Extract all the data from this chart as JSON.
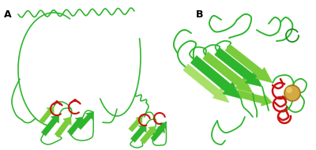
{
  "background_color": "#ffffff",
  "label_A": "A",
  "label_B": "B",
  "label_fontsize": 9,
  "label_fontweight": "bold",
  "fig_width": 4.0,
  "fig_height": 1.9,
  "dpi": 100,
  "green_dark": "#1a8c1a",
  "green_mid": "#2db52d",
  "green_light": "#7acc3a",
  "green_pale": "#a8e068",
  "red_color": "#cc1111",
  "gold_color": "#d4a843",
  "gold_shine": "#f0cc70",
  "gold_edge": "#a07818"
}
